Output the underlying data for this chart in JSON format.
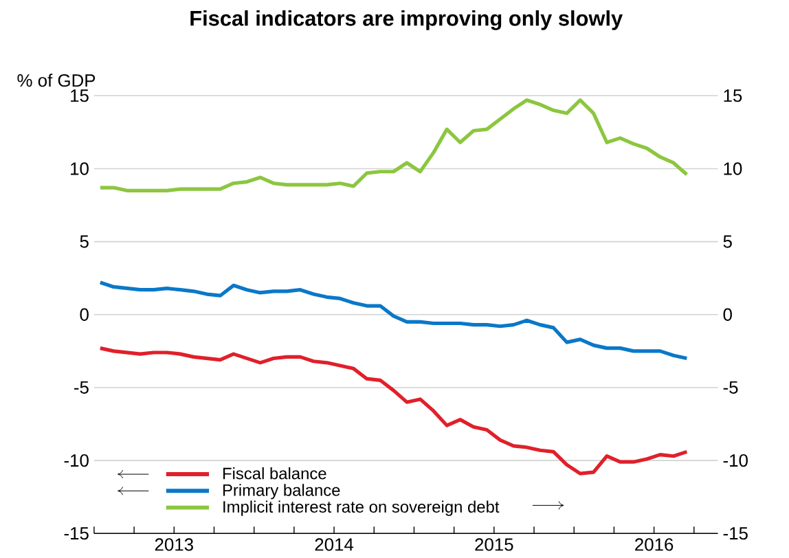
{
  "chart_data": {
    "type": "line",
    "title": "Fiscal indicators are improving only slowly",
    "ylabel": "% of GDP",
    "x": [
      "2013-01-15",
      "2013-02-15",
      "2013-03-15",
      "2013-04-15",
      "2013-05-15",
      "2013-06-15",
      "2013-07-15",
      "2013-08-15",
      "2013-09-15",
      "2013-10-15",
      "2013-11-15",
      "2013-12-15",
      "2014-01-15",
      "2014-02-15",
      "2014-03-15",
      "2014-04-15",
      "2014-05-15",
      "2014-06-15",
      "2014-07-15",
      "2014-08-15",
      "2014-09-15",
      "2014-10-15",
      "2014-11-15",
      "2014-12-15",
      "2015-01-15",
      "2015-02-15",
      "2015-03-15",
      "2015-04-15",
      "2015-05-15",
      "2015-06-15",
      "2015-07-15",
      "2015-08-15",
      "2015-09-15",
      "2015-10-15",
      "2015-11-15",
      "2015-12-15",
      "2016-01-15",
      "2016-02-15",
      "2016-03-15",
      "2016-04-15",
      "2016-05-15",
      "2016-06-15",
      "2016-07-15",
      "2016-08-15",
      "2016-09-15"
    ],
    "series": [
      {
        "name": "Fiscal balance",
        "color": "#e0202a",
        "axis": "y",
        "values": [
          -2.3,
          -2.5,
          -2.6,
          -2.7,
          -2.6,
          -2.6,
          -2.7,
          -2.9,
          -3.0,
          -3.1,
          -2.7,
          -3.0,
          -3.3,
          -3.0,
          -2.9,
          -2.9,
          -3.2,
          -3.3,
          -3.5,
          -3.7,
          -4.4,
          -4.5,
          -5.2,
          -6.0,
          -5.8,
          -6.6,
          -7.6,
          -7.2,
          -7.7,
          -7.9,
          -8.6,
          -9.0,
          -9.1,
          -9.3,
          -9.4,
          -10.3,
          -10.9,
          -10.8,
          -9.7,
          -10.1,
          -10.1,
          -9.9,
          -9.6,
          -9.7,
          -9.4
        ]
      },
      {
        "name": "Primary balance",
        "color": "#0a78c8",
        "axis": "y",
        "values": [
          2.2,
          1.9,
          1.8,
          1.7,
          1.7,
          1.8,
          1.7,
          1.6,
          1.4,
          1.3,
          2.0,
          1.7,
          1.5,
          1.6,
          1.6,
          1.7,
          1.4,
          1.2,
          1.1,
          0.8,
          0.6,
          0.6,
          -0.1,
          -0.5,
          -0.5,
          -0.6,
          -0.6,
          -0.6,
          -0.7,
          -0.7,
          -0.8,
          -0.7,
          -0.4,
          -0.7,
          -0.9,
          -1.9,
          -1.7,
          -2.1,
          -2.3,
          -2.3,
          -2.5,
          -2.5,
          -2.5,
          -2.8,
          -3.0
        ]
      },
      {
        "name": "Implicit interest rate on sovereign debt",
        "color": "#8cc63f",
        "axis": "y2",
        "values": [
          8.7,
          8.7,
          8.5,
          8.5,
          8.5,
          8.5,
          8.6,
          8.6,
          8.6,
          8.6,
          9.0,
          9.1,
          9.4,
          9.0,
          8.9,
          8.9,
          8.9,
          8.9,
          9.0,
          8.8,
          9.7,
          9.8,
          9.8,
          10.4,
          9.8,
          11.1,
          12.7,
          11.8,
          12.6,
          12.7,
          13.4,
          14.1,
          14.7,
          14.4,
          14.0,
          13.8,
          14.7,
          13.8,
          11.8,
          12.1,
          11.7,
          11.4,
          10.8,
          10.4,
          9.6
        ]
      }
    ],
    "xlim": [
      "2013-01-01",
      "2016-11-25"
    ],
    "xticks": [
      {
        "value": "2013-01-01",
        "label": null
      },
      {
        "value": "2013-04-01",
        "label": null
      },
      {
        "value": "2013-07-01",
        "label": "2013"
      },
      {
        "value": "2013-10-01",
        "label": null
      },
      {
        "value": "2014-01-01",
        "label": null
      },
      {
        "value": "2014-04-01",
        "label": null
      },
      {
        "value": "2014-07-01",
        "label": "2014"
      },
      {
        "value": "2014-10-01",
        "label": null
      },
      {
        "value": "2015-01-01",
        "label": null
      },
      {
        "value": "2015-04-01",
        "label": null
      },
      {
        "value": "2015-07-01",
        "label": "2015"
      },
      {
        "value": "2015-10-01",
        "label": null
      },
      {
        "value": "2016-01-01",
        "label": null
      },
      {
        "value": "2016-04-01",
        "label": null
      },
      {
        "value": "2016-07-01",
        "label": "2016"
      },
      {
        "value": "2016-10-01",
        "label": null
      }
    ],
    "ylim": [
      -15,
      15
    ],
    "yticks": [
      -15,
      -10,
      -5,
      0,
      5,
      10,
      15
    ],
    "y2lim": [
      -15,
      15
    ],
    "y2ticks": [
      -15,
      -10,
      -5,
      0,
      5,
      10,
      15
    ],
    "grid": "y",
    "legend": "bottom left",
    "line_style": "solid",
    "marker": "none"
  }
}
